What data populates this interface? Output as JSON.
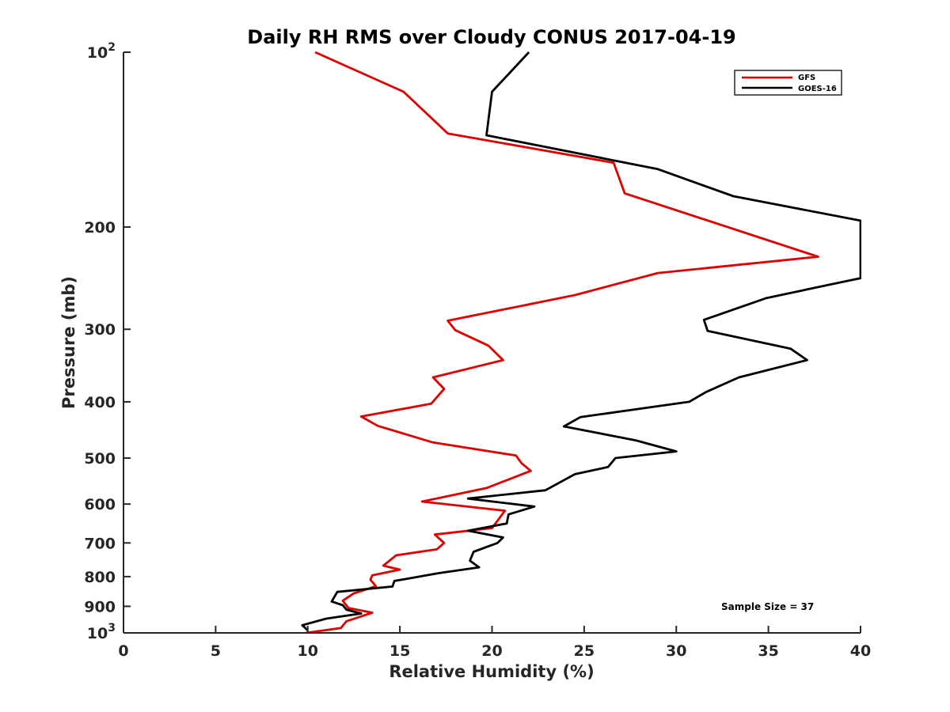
{
  "chart_data": {
    "type": "line",
    "title": "Daily RH RMS over Cloudy CONUS 2017-04-19",
    "xlabel": "Relative Humidity (%)",
    "ylabel": "Pressure (mb)",
    "xlim": [
      0,
      40
    ],
    "ylim": [
      100,
      1000
    ],
    "y_scale": "log",
    "y_reversed": true,
    "grid": false,
    "legend_position": "top-right",
    "x_ticks": [
      0,
      5,
      10,
      15,
      20,
      25,
      30,
      35,
      40
    ],
    "y_ticks": [
      {
        "value": 100,
        "label": "10",
        "exp": "2"
      },
      {
        "value": 200,
        "label": "200"
      },
      {
        "value": 300,
        "label": "300"
      },
      {
        "value": 400,
        "label": "400"
      },
      {
        "value": 500,
        "label": "500"
      },
      {
        "value": 600,
        "label": "600"
      },
      {
        "value": 700,
        "label": "700"
      },
      {
        "value": 800,
        "label": "800"
      },
      {
        "value": 900,
        "label": "900"
      },
      {
        "value": 1000,
        "label": "10",
        "exp": "3"
      }
    ],
    "series": [
      {
        "name": "GFS",
        "color": "#e00000",
        "points": [
          [
            10.4,
            100
          ],
          [
            15.2,
            117
          ],
          [
            17.6,
            138
          ],
          [
            26.6,
            155
          ],
          [
            27.2,
            175
          ],
          [
            37.7,
            225
          ],
          [
            29.0,
            240
          ],
          [
            24.5,
            262
          ],
          [
            17.6,
            290
          ],
          [
            18.0,
            301
          ],
          [
            19.8,
            320
          ],
          [
            20.6,
            339
          ],
          [
            16.8,
            363
          ],
          [
            17.4,
            380
          ],
          [
            16.7,
            403
          ],
          [
            12.9,
            424
          ],
          [
            13.8,
            440
          ],
          [
            16.8,
            470
          ],
          [
            21.3,
            495
          ],
          [
            21.6,
            510
          ],
          [
            22.1,
            526
          ],
          [
            19.7,
            563
          ],
          [
            16.2,
            594
          ],
          [
            20.7,
            616
          ],
          [
            20.0,
            660
          ],
          [
            16.9,
            677
          ],
          [
            17.4,
            700
          ],
          [
            17.0,
            718
          ],
          [
            14.8,
            735
          ],
          [
            14.1,
            766
          ],
          [
            15.0,
            778
          ],
          [
            13.5,
            796
          ],
          [
            13.4,
            810
          ],
          [
            13.7,
            831
          ],
          [
            12.5,
            855
          ],
          [
            11.9,
            880
          ],
          [
            12.2,
            906
          ],
          [
            13.5,
            923
          ],
          [
            12.1,
            955
          ],
          [
            11.8,
            981
          ],
          [
            9.9,
            1000
          ]
        ]
      },
      {
        "name": "GOES-16",
        "color": "#000000",
        "points": [
          [
            22.0,
            100
          ],
          [
            20.0,
            117
          ],
          [
            19.7,
            139
          ],
          [
            29.0,
            159
          ],
          [
            33.1,
            177
          ],
          [
            40.0,
            195
          ],
          [
            40.0,
            245
          ],
          [
            39.2,
            248
          ],
          [
            34.9,
            265
          ],
          [
            31.5,
            289
          ],
          [
            31.7,
            302
          ],
          [
            36.2,
            324
          ],
          [
            37.1,
            339
          ],
          [
            33.4,
            363
          ],
          [
            31.6,
            385
          ],
          [
            30.7,
            400
          ],
          [
            24.8,
            425
          ],
          [
            23.9,
            441
          ],
          [
            27.8,
            466
          ],
          [
            30.0,
            487
          ],
          [
            26.7,
            500
          ],
          [
            26.3,
            518
          ],
          [
            24.5,
            533
          ],
          [
            22.9,
            568
          ],
          [
            18.7,
            587
          ],
          [
            22.3,
            606
          ],
          [
            20.9,
            625
          ],
          [
            20.8,
            648
          ],
          [
            18.7,
            667
          ],
          [
            20.6,
            685
          ],
          [
            20.3,
            700
          ],
          [
            19.0,
            725
          ],
          [
            18.8,
            751
          ],
          [
            19.3,
            771
          ],
          [
            17.1,
            789
          ],
          [
            14.7,
            814
          ],
          [
            14.6,
            832
          ],
          [
            11.6,
            850
          ],
          [
            11.3,
            883
          ],
          [
            11.9,
            896
          ],
          [
            12.1,
            912
          ],
          [
            12.9,
            926
          ],
          [
            11.0,
            945
          ],
          [
            9.7,
            970
          ],
          [
            10.0,
            990
          ]
        ]
      }
    ],
    "annotations": [
      "Sample Size = 37"
    ]
  }
}
